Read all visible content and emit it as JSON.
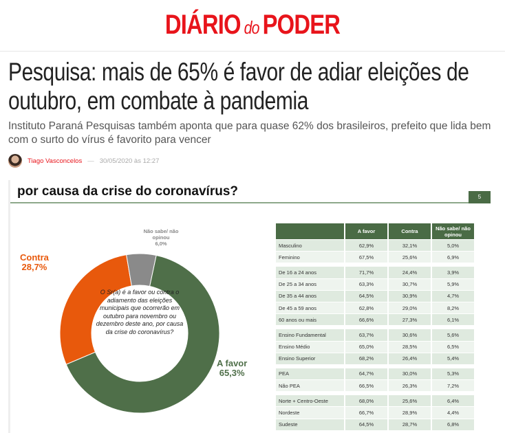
{
  "site": {
    "logo_left": "DIÁRIO",
    "logo_mid": "do",
    "logo_right": "PODER",
    "brand_color": "#e8141b"
  },
  "article": {
    "title": "Pesquisa: mais de 65% é favor de adiar eleições de outubro, em combate à pandemia",
    "subtitle": "Instituto Paraná Pesquisas também aponta que para quase 62% dos brasileiros, prefeito que lida bem com o surto do vírus é favorito para vencer",
    "author": "Tiago Vasconcelos",
    "separator": "—",
    "date": "30/05/2020 às 12:27"
  },
  "slide": {
    "title": "por causa da crise do coronavírus?",
    "page": "5",
    "question": "O Sr(a) é a favor ou contra o adiamento das eleições municipais que ocorrerão em outubro para novembro ou dezembro deste ano, por causa da crise do coronavírus?"
  },
  "chart_data": {
    "type": "pie",
    "donut": true,
    "slices": [
      {
        "name": "A favor",
        "value": 65.3,
        "label": "65,3%",
        "color": "#4f6f49"
      },
      {
        "name": "Contra",
        "value": 28.7,
        "label": "28,7%",
        "color": "#e8590c"
      },
      {
        "name": "Não sabe/ não opinou",
        "value": 6.0,
        "label": "6,0%",
        "color": "#8a8a8a"
      }
    ]
  },
  "table": {
    "headers": [
      "",
      "A favor",
      "Contra",
      "Não sabe/ não opinou"
    ],
    "groups": [
      [
        [
          "Masculino",
          "62,9%",
          "32,1%",
          "5,0%"
        ],
        [
          "Feminino",
          "67,5%",
          "25,6%",
          "6,9%"
        ]
      ],
      [
        [
          "De 16 a 24 anos",
          "71,7%",
          "24,4%",
          "3,9%"
        ],
        [
          "De 25 a 34 anos",
          "63,3%",
          "30,7%",
          "5,9%"
        ],
        [
          "De 35 a 44 anos",
          "64,5%",
          "30,9%",
          "4,7%"
        ],
        [
          "De 45 a 59 anos",
          "62,8%",
          "29,0%",
          "8,2%"
        ],
        [
          "60 anos ou mais",
          "66,6%",
          "27,3%",
          "6,1%"
        ]
      ],
      [
        [
          "Ensino Fundamental",
          "63,7%",
          "30,6%",
          "5,6%"
        ],
        [
          "Ensino Médio",
          "65,0%",
          "28,5%",
          "6,5%"
        ],
        [
          "Ensino Superior",
          "68,2%",
          "26,4%",
          "5,4%"
        ]
      ],
      [
        [
          "PEA",
          "64,7%",
          "30,0%",
          "5,3%"
        ],
        [
          "Não PEA",
          "66,5%",
          "26,3%",
          "7,2%"
        ]
      ],
      [
        [
          "Norte + Centro-Oeste",
          "68,0%",
          "25,6%",
          "6,4%"
        ],
        [
          "Nordeste",
          "66,7%",
          "28,9%",
          "4,4%"
        ],
        [
          "Sudeste",
          "64,5%",
          "28,7%",
          "6,8%"
        ]
      ]
    ]
  }
}
